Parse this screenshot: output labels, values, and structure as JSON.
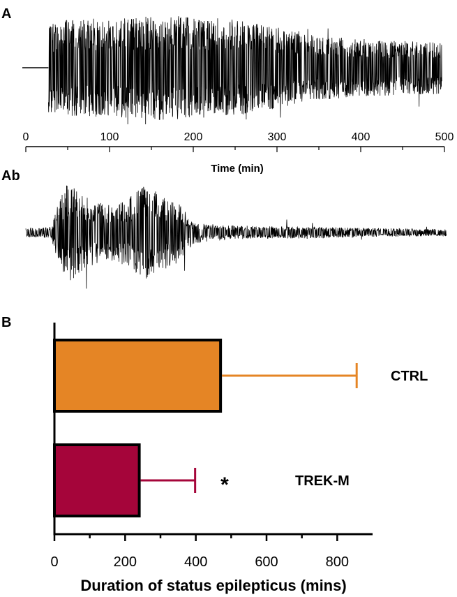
{
  "panels": {
    "a_label": "A",
    "ab_label": "Ab",
    "b_label": "B"
  },
  "chart_data": [
    {
      "type": "line",
      "panel": "A",
      "title": "",
      "xlabel": "Time (min)",
      "ylabel": "",
      "xlim": [
        0,
        500
      ],
      "xticks": [
        "0",
        "100",
        "200",
        "300",
        "400",
        "500"
      ],
      "trace_color": "#000000",
      "baseline_until_min": 27,
      "envelope": {
        "x": [
          27,
          50,
          100,
          150,
          200,
          250,
          300,
          350,
          400,
          450,
          497
        ],
        "amplitude": [
          0.85,
          0.92,
          0.95,
          1.0,
          0.98,
          0.92,
          0.78,
          0.62,
          0.55,
          0.52,
          0.5
        ]
      }
    },
    {
      "type": "line",
      "panel": "Ab",
      "title": "",
      "xlabel": "",
      "ylabel": "",
      "trace_color": "#000000",
      "envelope": {
        "x": [
          0,
          6,
          8,
          10,
          14,
          17,
          19,
          21,
          24,
          28,
          32,
          36,
          40,
          45,
          50,
          60,
          70,
          80,
          90,
          100
        ],
        "amplitude": [
          0.08,
          0.1,
          0.6,
          0.9,
          0.65,
          0.55,
          0.5,
          0.52,
          0.6,
          0.85,
          0.7,
          0.55,
          0.2,
          0.14,
          0.12,
          0.11,
          0.1,
          0.08,
          0.07,
          0.06
        ]
      }
    },
    {
      "type": "bar",
      "orientation": "horizontal",
      "panel": "B",
      "title": "",
      "xlabel": "Duration of status epilepticus (mins)",
      "ylabel": "",
      "xlim": [
        0,
        900
      ],
      "xticks": [
        "0",
        "200",
        "400",
        "600",
        "800"
      ],
      "categories": [
        "CTRL",
        "TREK-M"
      ],
      "values": [
        470,
        240
      ],
      "error": [
        385,
        158
      ],
      "colors": [
        "#E58525",
        "#A5053A"
      ],
      "annotations": [
        {
          "category": "TREK-M",
          "text": "*"
        }
      ]
    }
  ]
}
